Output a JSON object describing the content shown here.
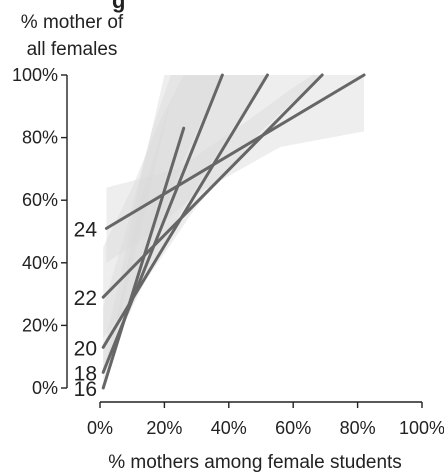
{
  "chart_data": {
    "type": "line",
    "title_fragment": "g",
    "ylabel_lines": [
      "% mother of",
      "all females"
    ],
    "xlabel": "% mothers among female students",
    "xlim": [
      0,
      100
    ],
    "ylim": [
      0,
      100
    ],
    "x_ticks": [
      0,
      20,
      40,
      60,
      80,
      100
    ],
    "x_tick_labels": [
      "0%",
      "20%",
      "40%",
      "60%",
      "80%",
      "100%"
    ],
    "y_ticks": [
      0,
      20,
      40,
      60,
      80,
      100
    ],
    "y_tick_labels": [
      "0%",
      "20%",
      "40%",
      "60%",
      "80%",
      "100%"
    ],
    "grid": false,
    "legend": "none",
    "line_color": "#666666",
    "band_color": "#d9d9d9",
    "series": [
      {
        "name": "16",
        "x": [
          1,
          26
        ],
        "y": [
          0,
          83
        ],
        "band_upper": [
          [
            1,
            5
          ],
          [
            6,
            26
          ],
          [
            12,
            58
          ],
          [
            18,
            78
          ],
          [
            22,
            92
          ]
        ],
        "band_lower": [
          [
            1,
            0
          ],
          [
            22,
            77
          ],
          [
            18,
            62
          ],
          [
            12,
            40
          ],
          [
            6,
            18
          ]
        ]
      },
      {
        "name": "18",
        "x": [
          1,
          38
        ],
        "y": [
          5,
          100
        ],
        "band_upper": [
          [
            1,
            12
          ],
          [
            6,
            34
          ],
          [
            12,
            64
          ],
          [
            20,
            100
          ],
          [
            38,
            100
          ]
        ],
        "band_lower": [
          [
            38,
            100
          ],
          [
            26,
            73
          ],
          [
            16,
            46
          ],
          [
            8,
            24
          ],
          [
            1,
            2
          ]
        ]
      },
      {
        "name": "20",
        "x": [
          1,
          52
        ],
        "y": [
          13,
          100
        ],
        "band_upper": [
          [
            1,
            26
          ],
          [
            8,
            50
          ],
          [
            16,
            82
          ],
          [
            22,
            100
          ],
          [
            52,
            100
          ]
        ],
        "band_lower": [
          [
            52,
            100
          ],
          [
            38,
            78
          ],
          [
            24,
            54
          ],
          [
            12,
            30
          ],
          [
            1,
            6
          ]
        ]
      },
      {
        "name": "22",
        "x": [
          1,
          69
        ],
        "y": [
          29,
          100
        ],
        "band_upper": [
          [
            1,
            45
          ],
          [
            10,
            64
          ],
          [
            18,
            84
          ],
          [
            26,
            100
          ],
          [
            69,
            100
          ]
        ],
        "band_lower": [
          [
            69,
            100
          ],
          [
            50,
            82
          ],
          [
            30,
            58
          ],
          [
            14,
            34
          ],
          [
            1,
            16
          ]
        ]
      },
      {
        "name": "24",
        "x": [
          2,
          82
        ],
        "y": [
          51,
          100
        ],
        "band_upper": [
          [
            2,
            64
          ],
          [
            24,
            70
          ],
          [
            44,
            84
          ],
          [
            60,
            96
          ],
          [
            66,
            100
          ],
          [
            82,
            100
          ]
        ],
        "band_lower": [
          [
            82,
            82
          ],
          [
            56,
            77
          ],
          [
            30,
            62
          ],
          [
            14,
            48
          ],
          [
            2,
            40
          ]
        ]
      }
    ]
  }
}
